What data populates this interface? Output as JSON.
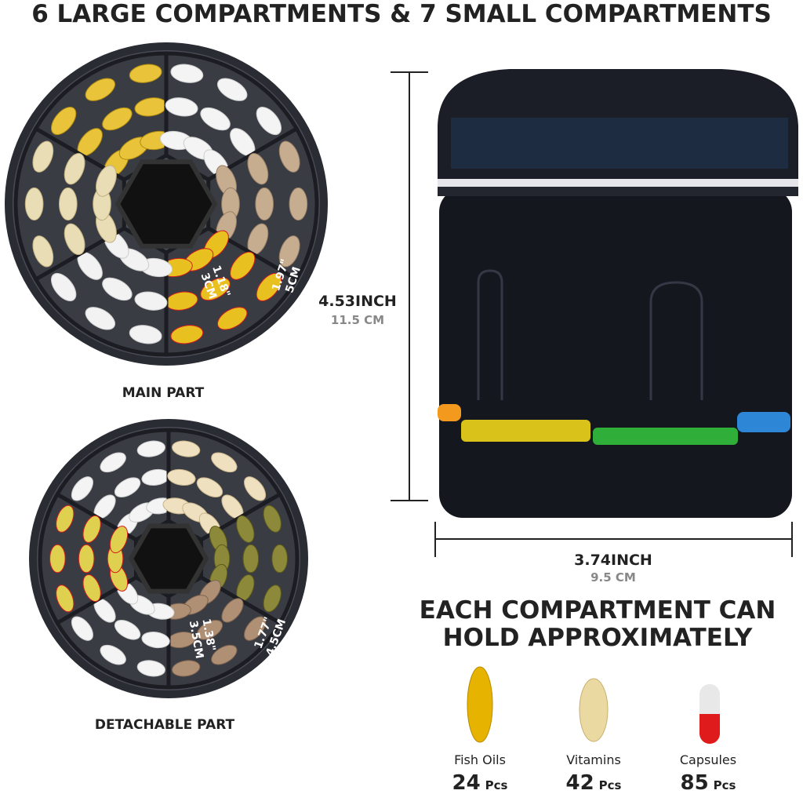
{
  "header": {
    "title": "6 LARGE COMPARTMENTS & 7 SMALL COMPARTMENTS"
  },
  "main_part": {
    "label": "MAIN PART",
    "width_in": "1.18\"",
    "width_cm": "3CM",
    "length_in": "1.97\"",
    "length_cm": "5CM"
  },
  "detachable_part": {
    "label": "DETACHABLE PART",
    "width_in": "1.38\"",
    "width_cm": "3.5CM",
    "length_in": "1.77\"",
    "length_cm": "4.5CM"
  },
  "height": {
    "inch": "4.53INCH",
    "cm": "11.5 CM"
  },
  "width": {
    "inch": "3.74INCH",
    "cm": "9.5 CM"
  },
  "capacity": {
    "heading": [
      "EACH COMPARTMENT CAN",
      "HOLD APPROXIMATELY"
    ],
    "items": [
      {
        "name": "Fish Oils",
        "count": "24",
        "unit": "Pcs"
      },
      {
        "name": "Vitamins",
        "count": "42",
        "unit": "Pcs"
      },
      {
        "name": "Capsules",
        "count": "85",
        "unit": "Pcs"
      }
    ]
  }
}
